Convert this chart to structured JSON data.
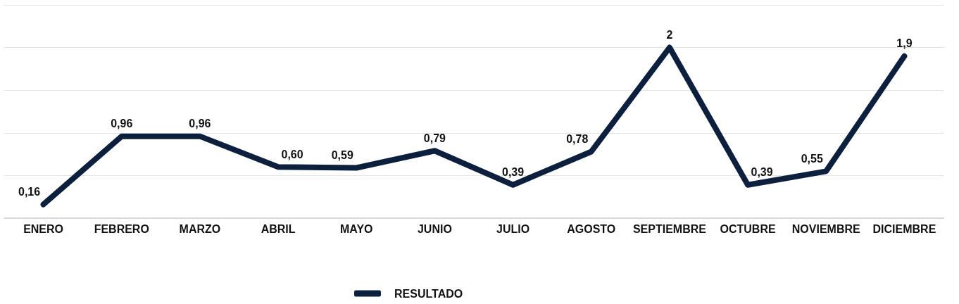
{
  "chart_data": {
    "type": "line",
    "categories": [
      "ENERO",
      "FEBRERO",
      "MARZO",
      "ABRIL",
      "MAYO",
      "JUNIO",
      "JULIO",
      "AGOSTO",
      "SEPTIEMBRE",
      "OCTUBRE",
      "NOVIEMBRE",
      "DICIEMBRE"
    ],
    "series": [
      {
        "name": "RESULTADO",
        "color": "#0c1f3d",
        "values": [
          0.16,
          0.96,
          0.96,
          0.6,
          0.59,
          0.79,
          0.39,
          0.78,
          2,
          0.39,
          0.55,
          1.9
        ],
        "value_labels": [
          "0,16",
          "0,96",
          "0,96",
          "0,60",
          "0,59",
          "0,79",
          "0,39",
          "0,78",
          "2",
          "0,39",
          "0,55",
          "1,9"
        ]
      }
    ],
    "ylim": [
      0,
      2.5
    ],
    "yticks": [
      0,
      0.5,
      1,
      1.5,
      2,
      2.5
    ],
    "grid": "y",
    "legend": "bottom",
    "tick_labels": "x",
    "marker": "none",
    "line_style": "solid"
  }
}
